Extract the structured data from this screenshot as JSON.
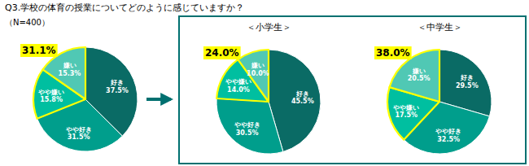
{
  "chart_data": [
    {
      "type": "pie",
      "title": "Q3.学校の体育の授業についてどのように感じていますか？",
      "subtitle": "（N=400）",
      "categories": [
        "好き",
        "やや好き",
        "やや嫌い",
        "嫌い"
      ],
      "values": [
        37.5,
        31.5,
        15.8,
        15.3
      ],
      "value_labels": [
        "37.5%",
        "31.5%",
        "15.8%",
        "15.3%"
      ],
      "colors": [
        "#0a6b65",
        "#009e8c",
        "#00bfa0",
        "#50c8b4"
      ],
      "data_labels": true,
      "annotations": [
        {
          "text": "31.1%"
        }
      ]
    },
    {
      "type": "pie",
      "title": "＜小学生＞",
      "categories": [
        "好き",
        "やや好き",
        "やや嫌い",
        "嫌い"
      ],
      "values": [
        45.5,
        30.5,
        14.0,
        10.0
      ],
      "value_labels": [
        "45.5%",
        "30.5%",
        "14.0%",
        "10.0%"
      ],
      "colors": [
        "#0a6b65",
        "#009e8c",
        "#00bfa0",
        "#50c8b4"
      ],
      "data_labels": true,
      "annotations": [
        {
          "text": "24.0%"
        }
      ]
    },
    {
      "type": "pie",
      "title": "＜中学生＞",
      "categories": [
        "好き",
        "やや好き",
        "やや嫌い",
        "嫌い"
      ],
      "values": [
        29.5,
        32.5,
        17.5,
        20.5
      ],
      "value_labels": [
        "29.5%",
        "32.5%",
        "17.5%",
        "20.5%"
      ],
      "colors": [
        "#0a6b65",
        "#009e8c",
        "#00bfa0",
        "#50c8b4"
      ],
      "data_labels": true,
      "annotations": [
        {
          "text": "38.0%"
        }
      ]
    }
  ]
}
